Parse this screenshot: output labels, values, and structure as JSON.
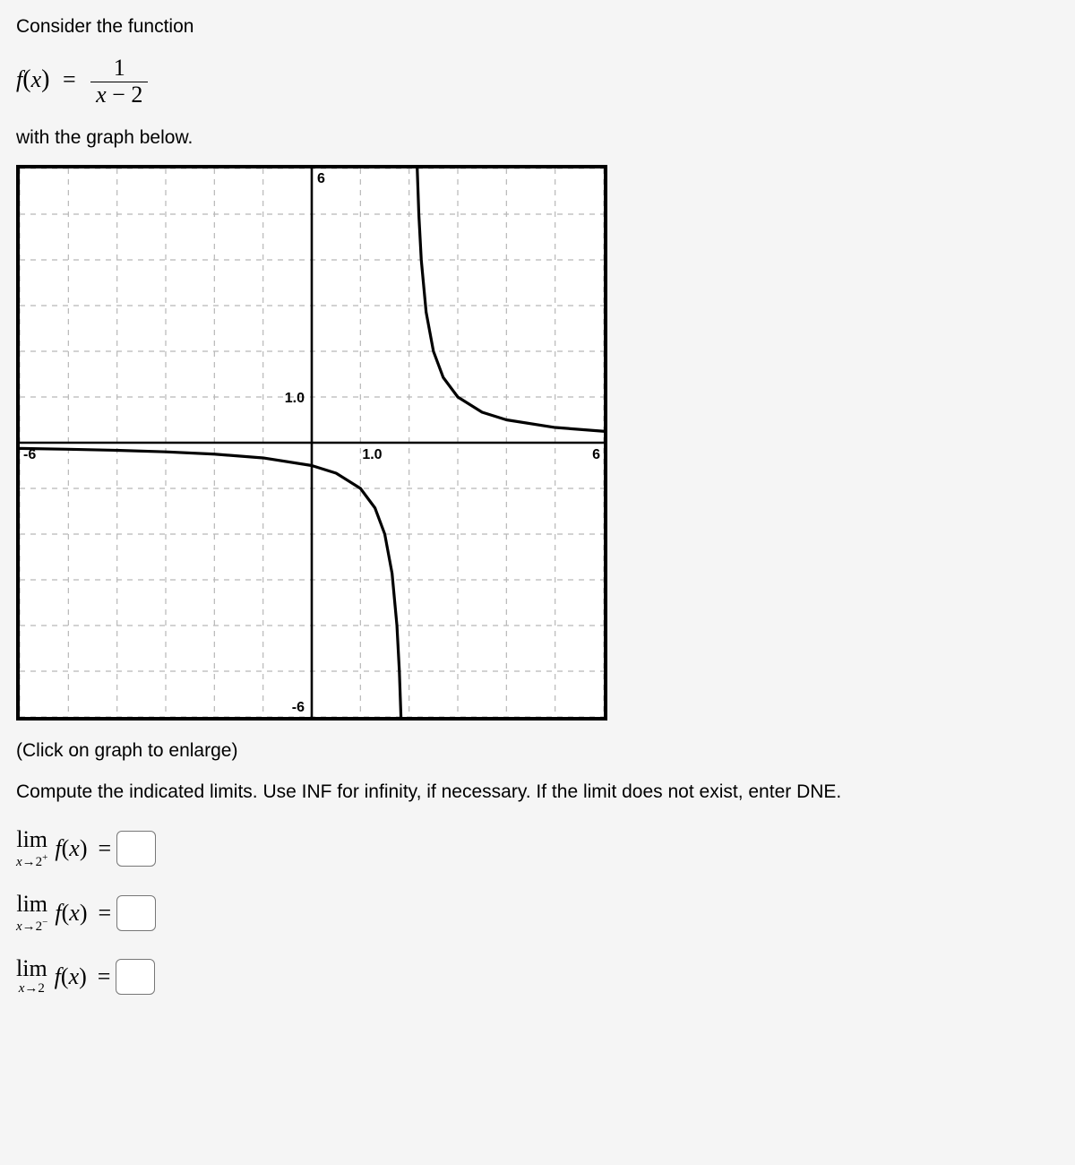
{
  "text": {
    "intro": "Consider the function",
    "below": "with the graph below.",
    "enlarge": "(Click on graph to enlarge)",
    "instructions": "Compute the indicated limits. Use INF for infinity, if necessary. If the limit does not exist, enter DNE."
  },
  "formula": {
    "lhs": "f(x)",
    "eq": "=",
    "numerator": "1",
    "denominator": "x − 2"
  },
  "limits": [
    {
      "approach": "x→2",
      "sup": "+",
      "fx": "f(x)",
      "value": ""
    },
    {
      "approach": "x→2",
      "sup": "−",
      "fx": "f(x)",
      "value": ""
    },
    {
      "approach": "x→2",
      "sup": "",
      "fx": "f(x)",
      "value": ""
    }
  ],
  "chart": {
    "type": "line",
    "background": "#ffffff",
    "border_color": "#000000",
    "border_width": 4,
    "xlim": [
      -6,
      6
    ],
    "ylim": [
      -6,
      6
    ],
    "xtick_step": 1,
    "ytick_step": 1,
    "grid_color": "#b8b8b8",
    "grid_dash": "6,6",
    "axis_color": "#000000",
    "axis_width": 2.6,
    "asymptote_x": 2,
    "curve_color": "#000000",
    "curve_width": 3.2,
    "labels": {
      "y_top": "6",
      "y_bottom": "-6",
      "y_one": "1.0",
      "x_one": "1.0",
      "x_left": "-6",
      "x_right": "6"
    },
    "label_fontsize": 16,
    "label_fontweight": "bold",
    "series_left": [
      [
        -6.0,
        -0.125
      ],
      [
        -5.0,
        -0.143
      ],
      [
        -4.0,
        -0.167
      ],
      [
        -3.0,
        -0.2
      ],
      [
        -2.0,
        -0.25
      ],
      [
        -1.0,
        -0.333
      ],
      [
        0.0,
        -0.5
      ],
      [
        0.5,
        -0.667
      ],
      [
        1.0,
        -1.0
      ],
      [
        1.3,
        -1.429
      ],
      [
        1.5,
        -2.0
      ],
      [
        1.65,
        -2.857
      ],
      [
        1.75,
        -4.0
      ],
      [
        1.8,
        -5.0
      ],
      [
        1.833,
        -6.0
      ]
    ],
    "series_right": [
      [
        2.167,
        6.0
      ],
      [
        2.2,
        5.0
      ],
      [
        2.25,
        4.0
      ],
      [
        2.35,
        2.857
      ],
      [
        2.5,
        2.0
      ],
      [
        2.7,
        1.429
      ],
      [
        3.0,
        1.0
      ],
      [
        3.5,
        0.667
      ],
      [
        4.0,
        0.5
      ],
      [
        5.0,
        0.333
      ],
      [
        6.0,
        0.25
      ]
    ]
  }
}
